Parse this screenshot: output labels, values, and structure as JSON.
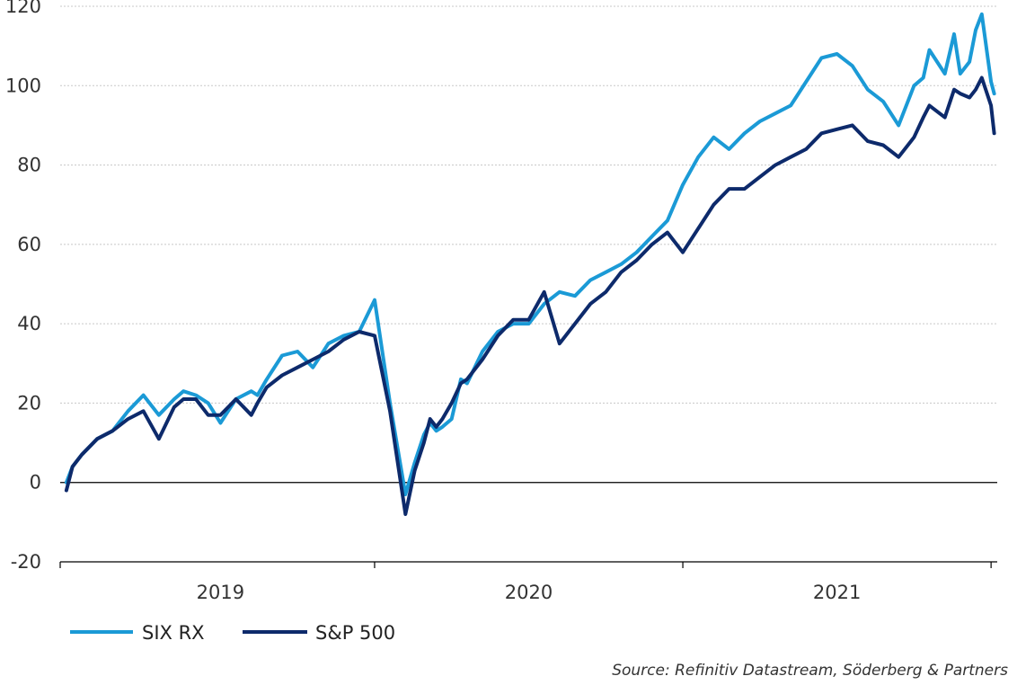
{
  "chart_data": {
    "type": "line",
    "title": "",
    "xlabel": "",
    "ylabel": "",
    "ylim": [
      -20,
      120
    ],
    "yticks": [
      -20,
      0,
      20,
      40,
      60,
      80,
      100,
      120
    ],
    "xlim": [
      2018.98,
      2022.02
    ],
    "xtick_positions": [
      2018.98,
      2020.0,
      2021.0,
      2022.0
    ],
    "xtick_labels": [
      {
        "label": "2019",
        "at": 2019.5
      },
      {
        "label": "2020",
        "at": 2020.5
      },
      {
        "label": "2021",
        "at": 2021.5
      }
    ],
    "grid": true,
    "legend": "bottom-left",
    "source": "Source: Refinitiv Datastream, Söderberg & Partners",
    "series": [
      {
        "name": "SIX RX",
        "color": "#1B9AD6",
        "x": [
          2019.0,
          2019.02,
          2019.05,
          2019.1,
          2019.15,
          2019.2,
          2019.25,
          2019.3,
          2019.35,
          2019.38,
          2019.42,
          2019.46,
          2019.5,
          2019.55,
          2019.6,
          2019.62,
          2019.65,
          2019.7,
          2019.75,
          2019.8,
          2019.85,
          2019.9,
          2019.95,
          2020.0,
          2020.05,
          2020.1,
          2020.13,
          2020.16,
          2020.18,
          2020.2,
          2020.22,
          2020.25,
          2020.28,
          2020.3,
          2020.35,
          2020.4,
          2020.45,
          2020.5,
          2020.55,
          2020.6,
          2020.65,
          2020.7,
          2020.75,
          2020.8,
          2020.85,
          2020.9,
          2020.95,
          2021.0,
          2021.05,
          2021.1,
          2021.15,
          2021.2,
          2021.25,
          2021.3,
          2021.35,
          2021.4,
          2021.45,
          2021.5,
          2021.55,
          2021.6,
          2021.65,
          2021.7,
          2021.75,
          2021.78,
          2021.8,
          2021.85,
          2021.88,
          2021.9,
          2021.93,
          2021.95,
          2021.97,
          2022.0,
          2022.01
        ],
        "y": [
          0,
          4,
          7,
          11,
          13,
          18,
          22,
          17,
          21,
          23,
          22,
          20,
          15,
          21,
          23,
          22,
          26,
          32,
          33,
          29,
          35,
          37,
          38,
          46,
          20,
          -3,
          5,
          12,
          15,
          13,
          14,
          16,
          26,
          25,
          33,
          38,
          40,
          40,
          45,
          48,
          47,
          51,
          53,
          55,
          58,
          62,
          66,
          75,
          82,
          87,
          84,
          88,
          91,
          93,
          95,
          101,
          107,
          108,
          105,
          99,
          96,
          90,
          100,
          102,
          109,
          103,
          113,
          103,
          106,
          114,
          118,
          101,
          98
        ]
      },
      {
        "name": "S&P 500",
        "color": "#0D2A6B",
        "x": [
          2019.0,
          2019.02,
          2019.05,
          2019.1,
          2019.15,
          2019.2,
          2019.25,
          2019.3,
          2019.35,
          2019.38,
          2019.42,
          2019.46,
          2019.5,
          2019.55,
          2019.6,
          2019.62,
          2019.65,
          2019.7,
          2019.75,
          2019.8,
          2019.85,
          2019.9,
          2019.95,
          2020.0,
          2020.05,
          2020.1,
          2020.13,
          2020.16,
          2020.18,
          2020.2,
          2020.22,
          2020.25,
          2020.28,
          2020.3,
          2020.35,
          2020.4,
          2020.45,
          2020.5,
          2020.55,
          2020.6,
          2020.65,
          2020.7,
          2020.75,
          2020.8,
          2020.85,
          2020.9,
          2020.95,
          2021.0,
          2021.05,
          2021.1,
          2021.15,
          2021.2,
          2021.25,
          2021.3,
          2021.35,
          2021.4,
          2021.45,
          2021.5,
          2021.55,
          2021.6,
          2021.65,
          2021.7,
          2021.75,
          2021.78,
          2021.8,
          2021.85,
          2021.88,
          2021.9,
          2021.93,
          2021.95,
          2021.97,
          2022.0,
          2022.01
        ],
        "y": [
          -2,
          4,
          7,
          11,
          13,
          16,
          18,
          11,
          19,
          21,
          21,
          17,
          17,
          21,
          17,
          20,
          24,
          27,
          29,
          31,
          33,
          36,
          38,
          37,
          18,
          -8,
          3,
          10,
          16,
          14,
          16,
          20,
          25,
          26,
          31,
          37,
          41,
          41,
          48,
          35,
          40,
          45,
          48,
          53,
          56,
          60,
          63,
          58,
          64,
          70,
          74,
          74,
          77,
          80,
          82,
          84,
          88,
          89,
          90,
          86,
          85,
          82,
          87,
          92,
          95,
          92,
          99,
          98,
          97,
          99,
          102,
          95,
          88
        ]
      }
    ]
  }
}
